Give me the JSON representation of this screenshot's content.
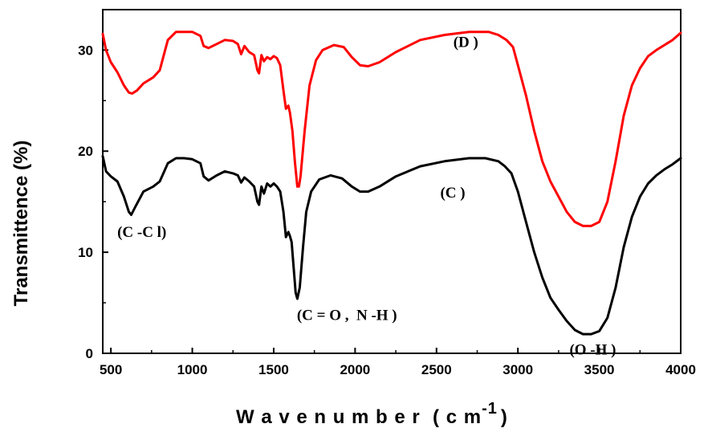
{
  "chart_data": {
    "type": "line",
    "title": "",
    "xlabel": "W a v e n u m b e r  ( c m",
    "xlabel_superscript": "-1",
    "xlabel_close": ")",
    "ylabel": "Transmittence (%)",
    "xlim": [
      450,
      4000
    ],
    "ylim": [
      0,
      34
    ],
    "x_ticks": [
      500,
      1000,
      1500,
      2000,
      2500,
      3000,
      3500,
      4000
    ],
    "y_ticks": [
      0,
      10,
      20,
      30
    ],
    "grid": false,
    "series": [
      {
        "name": "(C )",
        "color": "#000000",
        "points": [
          [
            450,
            19.5
          ],
          [
            470,
            18.0
          ],
          [
            500,
            17.5
          ],
          [
            540,
            17.0
          ],
          [
            580,
            15.5
          ],
          [
            610,
            14.0
          ],
          [
            625,
            13.7
          ],
          [
            650,
            14.5
          ],
          [
            700,
            16.0
          ],
          [
            760,
            16.5
          ],
          [
            800,
            17.0
          ],
          [
            850,
            18.8
          ],
          [
            900,
            19.3
          ],
          [
            950,
            19.3
          ],
          [
            1000,
            19.2
          ],
          [
            1050,
            18.8
          ],
          [
            1070,
            17.5
          ],
          [
            1100,
            17.1
          ],
          [
            1150,
            17.6
          ],
          [
            1200,
            18.0
          ],
          [
            1250,
            17.8
          ],
          [
            1280,
            17.6
          ],
          [
            1300,
            16.9
          ],
          [
            1320,
            17.4
          ],
          [
            1350,
            17.0
          ],
          [
            1380,
            16.5
          ],
          [
            1400,
            15.0
          ],
          [
            1410,
            14.7
          ],
          [
            1425,
            16.5
          ],
          [
            1440,
            15.8
          ],
          [
            1460,
            16.8
          ],
          [
            1480,
            16.5
          ],
          [
            1500,
            16.8
          ],
          [
            1520,
            16.5
          ],
          [
            1540,
            16.0
          ],
          [
            1560,
            14.0
          ],
          [
            1575,
            11.5
          ],
          [
            1590,
            12.0
          ],
          [
            1600,
            11.6
          ],
          [
            1610,
            11.0
          ],
          [
            1625,
            8.0
          ],
          [
            1635,
            6.0
          ],
          [
            1645,
            5.4
          ],
          [
            1660,
            6.5
          ],
          [
            1680,
            10.5
          ],
          [
            1700,
            14.0
          ],
          [
            1730,
            16.0
          ],
          [
            1780,
            17.2
          ],
          [
            1850,
            17.6
          ],
          [
            1920,
            17.3
          ],
          [
            1980,
            16.5
          ],
          [
            2030,
            16.0
          ],
          [
            2080,
            16.0
          ],
          [
            2150,
            16.5
          ],
          [
            2250,
            17.5
          ],
          [
            2400,
            18.5
          ],
          [
            2550,
            19.0
          ],
          [
            2700,
            19.3
          ],
          [
            2800,
            19.3
          ],
          [
            2880,
            19.0
          ],
          [
            2920,
            18.5
          ],
          [
            2960,
            17.8
          ],
          [
            3000,
            16.0
          ],
          [
            3050,
            13.0
          ],
          [
            3100,
            10.0
          ],
          [
            3150,
            7.5
          ],
          [
            3200,
            5.5
          ],
          [
            3250,
            4.3
          ],
          [
            3300,
            3.2
          ],
          [
            3350,
            2.3
          ],
          [
            3400,
            1.9
          ],
          [
            3450,
            1.9
          ],
          [
            3500,
            2.2
          ],
          [
            3550,
            3.5
          ],
          [
            3600,
            6.5
          ],
          [
            3650,
            10.5
          ],
          [
            3700,
            13.5
          ],
          [
            3750,
            15.5
          ],
          [
            3800,
            16.8
          ],
          [
            3850,
            17.6
          ],
          [
            3900,
            18.2
          ],
          [
            3950,
            18.7
          ],
          [
            4000,
            19.3
          ]
        ]
      },
      {
        "name": "(D )",
        "color": "#ff0000",
        "points": [
          [
            450,
            31.6
          ],
          [
            470,
            30.0
          ],
          [
            500,
            28.8
          ],
          [
            540,
            27.8
          ],
          [
            580,
            26.5
          ],
          [
            610,
            25.8
          ],
          [
            630,
            25.7
          ],
          [
            660,
            26.0
          ],
          [
            700,
            26.7
          ],
          [
            760,
            27.3
          ],
          [
            800,
            28.0
          ],
          [
            850,
            31.0
          ],
          [
            900,
            31.8
          ],
          [
            950,
            31.8
          ],
          [
            1000,
            31.8
          ],
          [
            1050,
            31.4
          ],
          [
            1070,
            30.4
          ],
          [
            1100,
            30.2
          ],
          [
            1150,
            30.6
          ],
          [
            1200,
            31.0
          ],
          [
            1250,
            30.9
          ],
          [
            1280,
            30.6
          ],
          [
            1300,
            29.6
          ],
          [
            1320,
            30.4
          ],
          [
            1350,
            29.8
          ],
          [
            1380,
            29.5
          ],
          [
            1400,
            28.0
          ],
          [
            1410,
            27.7
          ],
          [
            1425,
            29.5
          ],
          [
            1440,
            28.9
          ],
          [
            1460,
            29.3
          ],
          [
            1480,
            29.1
          ],
          [
            1500,
            29.4
          ],
          [
            1520,
            29.2
          ],
          [
            1540,
            28.5
          ],
          [
            1560,
            26.0
          ],
          [
            1575,
            24.2
          ],
          [
            1590,
            24.5
          ],
          [
            1600,
            23.8
          ],
          [
            1615,
            22.0
          ],
          [
            1630,
            19.0
          ],
          [
            1645,
            16.5
          ],
          [
            1655,
            16.5
          ],
          [
            1665,
            17.5
          ],
          [
            1690,
            22.0
          ],
          [
            1720,
            26.5
          ],
          [
            1760,
            29.0
          ],
          [
            1800,
            30.0
          ],
          [
            1870,
            30.5
          ],
          [
            1930,
            30.3
          ],
          [
            1980,
            29.3
          ],
          [
            2030,
            28.5
          ],
          [
            2080,
            28.4
          ],
          [
            2150,
            28.8
          ],
          [
            2250,
            29.8
          ],
          [
            2400,
            31.0
          ],
          [
            2550,
            31.5
          ],
          [
            2700,
            31.8
          ],
          [
            2820,
            31.8
          ],
          [
            2880,
            31.5
          ],
          [
            2930,
            31.0
          ],
          [
            2970,
            30.3
          ],
          [
            3000,
            28.5
          ],
          [
            3050,
            25.5
          ],
          [
            3100,
            22.0
          ],
          [
            3150,
            19.0
          ],
          [
            3200,
            17.0
          ],
          [
            3250,
            15.5
          ],
          [
            3300,
            14.0
          ],
          [
            3350,
            13.0
          ],
          [
            3400,
            12.6
          ],
          [
            3450,
            12.6
          ],
          [
            3500,
            13.0
          ],
          [
            3550,
            15.0
          ],
          [
            3600,
            19.0
          ],
          [
            3650,
            23.5
          ],
          [
            3700,
            26.5
          ],
          [
            3750,
            28.2
          ],
          [
            3800,
            29.4
          ],
          [
            3850,
            30.0
          ],
          [
            3900,
            30.5
          ],
          [
            3950,
            31.0
          ],
          [
            4000,
            31.7
          ]
        ]
      }
    ],
    "annotations": [
      {
        "text": "(D )",
        "x": 2680,
        "y": 30.3
      },
      {
        "text": "(C )",
        "x": 2600,
        "y": 15.4
      },
      {
        "text": "(C -C l)",
        "x": 690,
        "y": 11.5
      },
      {
        "text": "(C = O ,  N -H )",
        "x": 1950,
        "y": 3.3
      },
      {
        "text": "(O -H )",
        "x": 3460,
        "y": -0.1
      }
    ]
  }
}
